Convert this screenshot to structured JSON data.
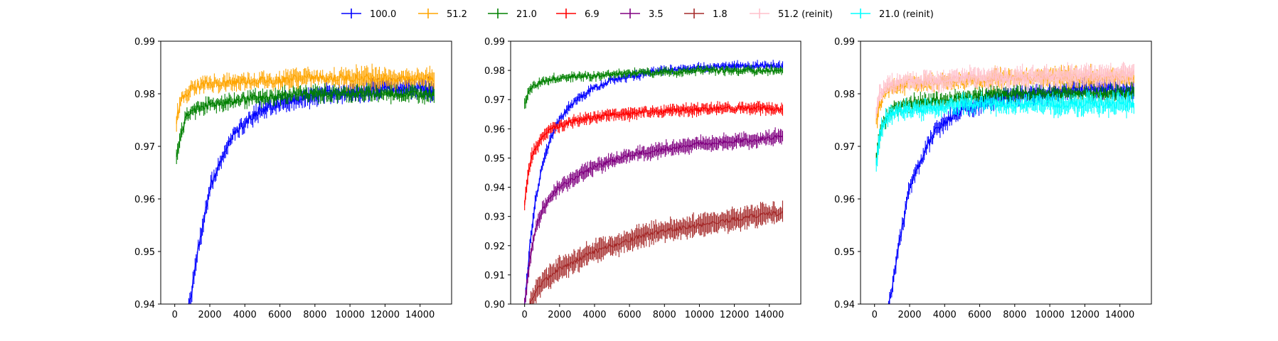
{
  "legend": {
    "placement": "top-center",
    "items": [
      {
        "label": "100.0",
        "color": "#0000ff"
      },
      {
        "label": "51.2",
        "color": "#ffa500"
      },
      {
        "label": "21.0",
        "color": "#008000"
      },
      {
        "label": "6.9",
        "color": "#ff0000"
      },
      {
        "label": "3.5",
        "color": "#800080"
      },
      {
        "label": "1.8",
        "color": "#a52a2a"
      },
      {
        "label": "51.2 (reinit)",
        "color": "#ffc0cb"
      },
      {
        "label": "21.0 (reinit)",
        "color": "#00ffff"
      }
    ]
  },
  "chart_data": [
    {
      "type": "line",
      "title": "",
      "xlabel": "",
      "ylabel": "",
      "xlim": [
        -800,
        15800
      ],
      "ylim": [
        0.94,
        0.99
      ],
      "xticks": [
        0,
        2000,
        4000,
        6000,
        8000,
        10000,
        12000,
        14000
      ],
      "yticks": [
        0.94,
        0.95,
        0.96,
        0.97,
        0.98,
        0.99
      ],
      "xtick_labels": [
        "0",
        "2000",
        "4000",
        "6000",
        "8000",
        "10000",
        "12000",
        "14000"
      ],
      "ytick_labels": [
        "0.94",
        "0.95",
        "0.96",
        "0.97",
        "0.98",
        "0.99"
      ],
      "grid": false,
      "error_bars": true,
      "series": [
        {
          "name": "100.0",
          "color": "#0000ff",
          "x": [
            800,
            1000,
            1300,
            1600,
            2000,
            2500,
            3000,
            3500,
            4000,
            5000,
            6000,
            7000,
            8000,
            9000,
            10000,
            11000,
            12000,
            13000,
            14000,
            14800
          ],
          "y": [
            0.94,
            0.943,
            0.95,
            0.955,
            0.962,
            0.966,
            0.97,
            0.973,
            0.9745,
            0.977,
            0.978,
            0.979,
            0.9795,
            0.98,
            0.98,
            0.9805,
            0.981,
            0.981,
            0.981,
            0.9805
          ],
          "err": [
            0.001,
            0.0012,
            0.0012,
            0.0012,
            0.0012,
            0.001,
            0.001,
            0.001,
            0.0012,
            0.0012,
            0.0012,
            0.0012,
            0.0012,
            0.0012,
            0.0012,
            0.0012,
            0.0012,
            0.0012,
            0.0012,
            0.0015
          ]
        },
        {
          "name": "51.2",
          "color": "#ffa500",
          "x": [
            100,
            300,
            600,
            1000,
            1500,
            2000,
            3000,
            4000,
            5000,
            6000,
            7000,
            8000,
            9000,
            10000,
            11000,
            12000,
            13000,
            14000,
            14800
          ],
          "y": [
            0.975,
            0.978,
            0.98,
            0.981,
            0.9815,
            0.982,
            0.982,
            0.9825,
            0.9825,
            0.9825,
            0.983,
            0.983,
            0.983,
            0.983,
            0.983,
            0.983,
            0.983,
            0.983,
            0.983
          ],
          "err": [
            0.0015,
            0.0012,
            0.001,
            0.001,
            0.001,
            0.001,
            0.001,
            0.001,
            0.001,
            0.001,
            0.0015,
            0.001,
            0.001,
            0.0015,
            0.0018,
            0.0015,
            0.0012,
            0.0012,
            0.0015
          ]
        },
        {
          "name": "21.0",
          "color": "#008000",
          "x": [
            100,
            300,
            600,
            1000,
            1500,
            2000,
            3000,
            4000,
            5000,
            6000,
            7000,
            8000,
            9000,
            10000,
            11000,
            12000,
            13000,
            14000,
            14800
          ],
          "y": [
            0.968,
            0.972,
            0.975,
            0.977,
            0.9775,
            0.978,
            0.9785,
            0.979,
            0.979,
            0.9795,
            0.98,
            0.98,
            0.98,
            0.98,
            0.98,
            0.98,
            0.98,
            0.98,
            0.98
          ],
          "err": [
            0.0015,
            0.0012,
            0.001,
            0.001,
            0.001,
            0.001,
            0.001,
            0.001,
            0.001,
            0.001,
            0.001,
            0.001,
            0.001,
            0.001,
            0.001,
            0.001,
            0.001,
            0.001,
            0.0012
          ]
        }
      ]
    },
    {
      "type": "line",
      "title": "",
      "xlabel": "",
      "ylabel": "",
      "xlim": [
        -800,
        15800
      ],
      "ylim": [
        0.9,
        0.99
      ],
      "xticks": [
        0,
        2000,
        4000,
        6000,
        8000,
        10000,
        12000,
        14000
      ],
      "yticks": [
        0.9,
        0.91,
        0.92,
        0.93,
        0.94,
        0.95,
        0.96,
        0.97,
        0.98,
        0.99
      ],
      "xtick_labels": [
        "0",
        "2000",
        "4000",
        "6000",
        "8000",
        "10000",
        "12000",
        "14000"
      ],
      "ytick_labels": [
        "0.90",
        "0.91",
        "0.92",
        "0.93",
        "0.94",
        "0.95",
        "0.96",
        "0.97",
        "0.98",
        "0.99"
      ],
      "grid": false,
      "error_bars": true,
      "series": [
        {
          "name": "100.0",
          "color": "#0000ff",
          "x": [
            0,
            300,
            600,
            1000,
            1500,
            2000,
            2500,
            3000,
            4000,
            5000,
            6000,
            7000,
            8000,
            9000,
            10000,
            11000,
            12000,
            13000,
            14000,
            14800
          ],
          "y": [
            0.9,
            0.92,
            0.935,
            0.947,
            0.957,
            0.963,
            0.967,
            0.97,
            0.974,
            0.977,
            0.978,
            0.979,
            0.98,
            0.9805,
            0.981,
            0.981,
            0.9815,
            0.9815,
            0.9815,
            0.9815
          ],
          "err": [
            0.002,
            0.002,
            0.002,
            0.0015,
            0.0015,
            0.0012,
            0.0012,
            0.0012,
            0.001,
            0.001,
            0.001,
            0.001,
            0.001,
            0.001,
            0.001,
            0.001,
            0.001,
            0.001,
            0.001,
            0.001
          ]
        },
        {
          "name": "21.0",
          "color": "#008000",
          "x": [
            0,
            200,
            500,
            1000,
            1500,
            2000,
            3000,
            4000,
            5000,
            6000,
            7000,
            8000,
            9000,
            10000,
            11000,
            12000,
            13000,
            14000,
            14800
          ],
          "y": [
            0.968,
            0.972,
            0.975,
            0.976,
            0.977,
            0.9775,
            0.978,
            0.978,
            0.9785,
            0.979,
            0.979,
            0.9795,
            0.9795,
            0.98,
            0.98,
            0.98,
            0.98,
            0.98,
            0.98
          ],
          "err": [
            0.002,
            0.0015,
            0.001,
            0.001,
            0.001,
            0.001,
            0.001,
            0.001,
            0.001,
            0.001,
            0.001,
            0.001,
            0.001,
            0.001,
            0.001,
            0.001,
            0.001,
            0.001,
            0.001
          ]
        },
        {
          "name": "6.9",
          "color": "#ff0000",
          "x": [
            0,
            200,
            500,
            1000,
            1500,
            2000,
            3000,
            4000,
            5000,
            6000,
            7000,
            8000,
            9000,
            10000,
            11000,
            12000,
            13000,
            14000,
            14800
          ],
          "y": [
            0.934,
            0.945,
            0.952,
            0.957,
            0.96,
            0.961,
            0.963,
            0.964,
            0.965,
            0.965,
            0.966,
            0.966,
            0.9665,
            0.9665,
            0.967,
            0.967,
            0.967,
            0.967,
            0.967
          ],
          "err": [
            0.002,
            0.002,
            0.002,
            0.0015,
            0.0015,
            0.0015,
            0.0015,
            0.0015,
            0.0015,
            0.0015,
            0.0015,
            0.0015,
            0.0015,
            0.0015,
            0.0015,
            0.0015,
            0.0015,
            0.0015,
            0.0015
          ]
        },
        {
          "name": "3.5",
          "color": "#800080",
          "x": [
            0,
            300,
            600,
            1000,
            1500,
            2000,
            3000,
            4000,
            5000,
            6000,
            7000,
            8000,
            9000,
            10000,
            11000,
            12000,
            13000,
            14000,
            14800
          ],
          "y": [
            0.9,
            0.915,
            0.925,
            0.932,
            0.937,
            0.94,
            0.944,
            0.947,
            0.949,
            0.951,
            0.952,
            0.953,
            0.954,
            0.955,
            0.955,
            0.956,
            0.956,
            0.957,
            0.957
          ],
          "err": [
            0.002,
            0.002,
            0.002,
            0.002,
            0.002,
            0.002,
            0.002,
            0.002,
            0.002,
            0.002,
            0.002,
            0.002,
            0.002,
            0.002,
            0.002,
            0.002,
            0.002,
            0.002,
            0.002
          ]
        },
        {
          "name": "1.8",
          "color": "#a52a2a",
          "x": [
            300,
            600,
            1000,
            1500,
            2000,
            3000,
            4000,
            5000,
            6000,
            7000,
            8000,
            9000,
            10000,
            11000,
            12000,
            13000,
            14000,
            14800
          ],
          "y": [
            0.9,
            0.904,
            0.907,
            0.91,
            0.912,
            0.915,
            0.918,
            0.92,
            0.922,
            0.924,
            0.925,
            0.926,
            0.927,
            0.928,
            0.929,
            0.93,
            0.931,
            0.931
          ],
          "err": [
            0.003,
            0.003,
            0.003,
            0.003,
            0.003,
            0.003,
            0.003,
            0.003,
            0.003,
            0.003,
            0.003,
            0.003,
            0.003,
            0.003,
            0.003,
            0.003,
            0.003,
            0.003
          ]
        }
      ]
    },
    {
      "type": "line",
      "title": "",
      "xlabel": "",
      "ylabel": "",
      "xlim": [
        -800,
        15800
      ],
      "ylim": [
        0.94,
        0.99
      ],
      "xticks": [
        0,
        2000,
        4000,
        6000,
        8000,
        10000,
        12000,
        14000
      ],
      "yticks": [
        0.94,
        0.95,
        0.96,
        0.97,
        0.98,
        0.99
      ],
      "xtick_labels": [
        "0",
        "2000",
        "4000",
        "6000",
        "8000",
        "10000",
        "12000",
        "14000"
      ],
      "ytick_labels": [
        "0.94",
        "0.95",
        "0.96",
        "0.97",
        "0.98",
        "0.99"
      ],
      "grid": false,
      "error_bars": true,
      "series": [
        {
          "name": "100.0",
          "color": "#0000ff",
          "x": [
            800,
            1000,
            1300,
            1600,
            2000,
            2500,
            3000,
            3500,
            4000,
            5000,
            6000,
            7000,
            8000,
            9000,
            10000,
            11000,
            12000,
            13000,
            14000,
            14800
          ],
          "y": [
            0.94,
            0.943,
            0.95,
            0.955,
            0.962,
            0.966,
            0.97,
            0.973,
            0.9745,
            0.977,
            0.978,
            0.979,
            0.9795,
            0.98,
            0.98,
            0.9805,
            0.981,
            0.981,
            0.981,
            0.9805
          ],
          "err": [
            0.001,
            0.0012,
            0.0012,
            0.0012,
            0.0012,
            0.001,
            0.001,
            0.001,
            0.0012,
            0.0012,
            0.0012,
            0.0012,
            0.0012,
            0.0012,
            0.0012,
            0.0012,
            0.0012,
            0.0012,
            0.0012,
            0.0015
          ]
        },
        {
          "name": "51.2",
          "color": "#ffa500",
          "x": [
            100,
            300,
            600,
            1000,
            1500,
            2000,
            3000,
            4000,
            5000,
            6000,
            7000,
            8000,
            9000,
            10000,
            11000,
            12000,
            13000,
            14000,
            14800
          ],
          "y": [
            0.975,
            0.978,
            0.98,
            0.981,
            0.9815,
            0.982,
            0.982,
            0.9825,
            0.9825,
            0.9825,
            0.983,
            0.983,
            0.983,
            0.983,
            0.983,
            0.983,
            0.983,
            0.983,
            0.983
          ],
          "err": [
            0.0015,
            0.0012,
            0.001,
            0.001,
            0.001,
            0.001,
            0.001,
            0.001,
            0.001,
            0.001,
            0.0015,
            0.001,
            0.001,
            0.0015,
            0.0018,
            0.0015,
            0.0012,
            0.0012,
            0.0015
          ]
        },
        {
          "name": "21.0",
          "color": "#008000",
          "x": [
            100,
            300,
            600,
            1000,
            1500,
            2000,
            3000,
            4000,
            5000,
            6000,
            7000,
            8000,
            9000,
            10000,
            11000,
            12000,
            13000,
            14000,
            14800
          ],
          "y": [
            0.968,
            0.972,
            0.975,
            0.977,
            0.9775,
            0.978,
            0.9785,
            0.979,
            0.979,
            0.9795,
            0.98,
            0.98,
            0.98,
            0.98,
            0.98,
            0.98,
            0.98,
            0.98,
            0.98
          ],
          "err": [
            0.0015,
            0.0012,
            0.001,
            0.001,
            0.001,
            0.001,
            0.001,
            0.001,
            0.001,
            0.001,
            0.001,
            0.001,
            0.001,
            0.001,
            0.001,
            0.001,
            0.001,
            0.001,
            0.0012
          ]
        },
        {
          "name": "51.2 (reinit)",
          "color": "#ffc0cb",
          "x": [
            100,
            300,
            600,
            1000,
            1500,
            2000,
            3000,
            4000,
            5000,
            6000,
            7000,
            8000,
            9000,
            10000,
            11000,
            12000,
            13000,
            14000,
            14800
          ],
          "y": [
            0.976,
            0.98,
            0.981,
            0.982,
            0.982,
            0.982,
            0.9825,
            0.9825,
            0.983,
            0.983,
            0.983,
            0.983,
            0.983,
            0.983,
            0.9835,
            0.9835,
            0.9835,
            0.9835,
            0.984
          ],
          "err": [
            0.0015,
            0.0012,
            0.0012,
            0.0012,
            0.0012,
            0.0012,
            0.0012,
            0.0015,
            0.0012,
            0.0015,
            0.0015,
            0.0015,
            0.0015,
            0.0015,
            0.0015,
            0.0015,
            0.0015,
            0.0015,
            0.0015
          ]
        },
        {
          "name": "21.0 (reinit)",
          "color": "#00ffff",
          "x": [
            100,
            300,
            600,
            1000,
            1500,
            2000,
            3000,
            4000,
            5000,
            6000,
            7000,
            8000,
            9000,
            10000,
            11000,
            12000,
            13000,
            14000,
            14800
          ],
          "y": [
            0.967,
            0.972,
            0.975,
            0.976,
            0.977,
            0.977,
            0.977,
            0.9775,
            0.978,
            0.978,
            0.978,
            0.978,
            0.978,
            0.978,
            0.978,
            0.978,
            0.978,
            0.978,
            0.978
          ],
          "err": [
            0.002,
            0.0015,
            0.0012,
            0.0012,
            0.0012,
            0.0012,
            0.0012,
            0.0012,
            0.0012,
            0.0012,
            0.0012,
            0.0012,
            0.0012,
            0.0015,
            0.0015,
            0.0015,
            0.0015,
            0.0015,
            0.0015
          ]
        }
      ]
    }
  ]
}
